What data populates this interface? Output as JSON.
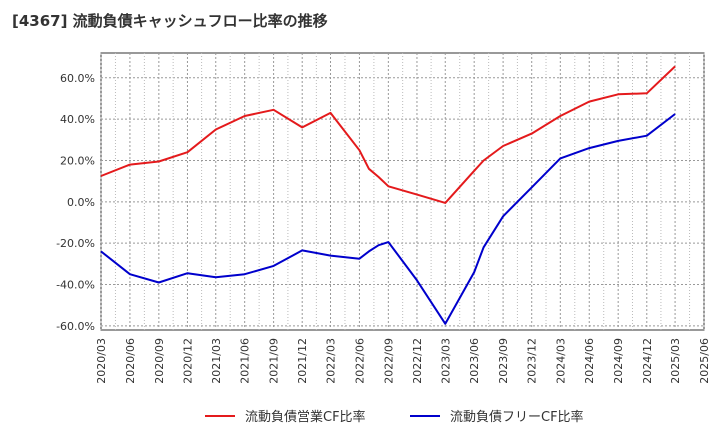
{
  "title": "[4367]  流動負債キャッシュフロー比率の推移",
  "chart_data": {
    "type": "line",
    "x": [
      "2020/03",
      "2020/06",
      "2020/09",
      "2020/12",
      "2021/03",
      "2021/06",
      "2021/09",
      "2021/12",
      "2022/03",
      "2022/06",
      "2022/07",
      "2022/08",
      "2022/09",
      "2022/12",
      "2023/03",
      "2023/06",
      "2023/07",
      "2023/09",
      "2023/12",
      "2024/03",
      "2024/06",
      "2024/09",
      "2024/12",
      "2025/03"
    ],
    "x_ticks": [
      "2020/03",
      "2020/06",
      "2020/09",
      "2020/12",
      "2021/03",
      "2021/06",
      "2021/09",
      "2021/12",
      "2022/03",
      "2022/06",
      "2022/09",
      "2022/12",
      "2023/03",
      "2023/06",
      "2023/09",
      "2023/12",
      "2024/03",
      "2024/06",
      "2024/09",
      "2024/12",
      "2025/03",
      "2025/06"
    ],
    "ylim": [
      -62,
      72
    ],
    "y_ticks": [
      -60,
      -40,
      -20,
      0,
      20,
      40,
      60
    ],
    "y_tick_labels": [
      "-60.0%",
      "-40.0%",
      "-20.0%",
      "0.0%",
      "20.0%",
      "40.0%",
      "60.0%"
    ],
    "grid": true,
    "legend_position": "bottom",
    "series": [
      {
        "name": "流動負債営業CF比率",
        "color": "#e41a1c",
        "values": [
          12.5,
          18,
          19.5,
          24,
          35,
          41.5,
          44.5,
          36,
          43,
          25,
          16,
          12,
          7.5,
          3.5,
          -0.5,
          15,
          20,
          27,
          33,
          41.5,
          48.5,
          52,
          52.5,
          65.5
        ]
      },
      {
        "name": "流動負債フリーCF比率",
        "color": "#0000cc",
        "values": [
          -24,
          -35,
          -39,
          -34.5,
          -36.5,
          -35,
          -31,
          -23.5,
          -26,
          -27.5,
          -24,
          -21,
          -19.5,
          -38,
          -59,
          -34,
          -22,
          -7,
          7,
          21,
          26,
          29.5,
          32,
          42.5
        ]
      }
    ]
  }
}
